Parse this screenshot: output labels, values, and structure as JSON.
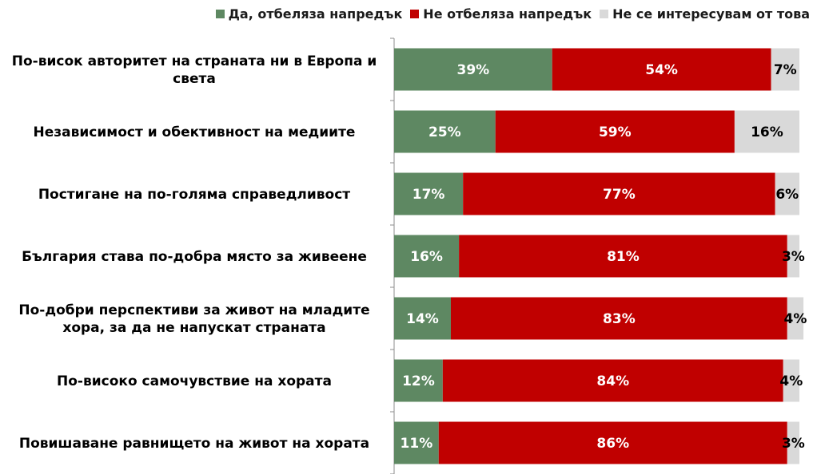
{
  "chart_data": {
    "type": "bar",
    "orientation": "horizontal",
    "stacked": true,
    "percent_stacked": true,
    "legend_position": "top-right",
    "grid": false,
    "categories": [
      "По-висок авторитет на страната ни в Европа и света",
      "Независимост и обективност на медиите",
      "Постигане на по-голяма справедливост",
      "България става по-добра място за живеене",
      "По-добри перспективи за живот на младите хора, за да не напускат страната",
      "По-високо самочувствие на хората",
      "Повишаване равнището на живот на хората"
    ],
    "series": [
      {
        "name": "Да, отбеляза напредък",
        "color": "#5e8862",
        "label_color": "#ffffff",
        "values": [
          39,
          25,
          17,
          16,
          14,
          12,
          11
        ]
      },
      {
        "name": "Не отбеляза напредък",
        "color": "#c00000",
        "label_color": "#ffffff",
        "values": [
          54,
          59,
          77,
          81,
          83,
          84,
          86
        ]
      },
      {
        "name": "Не се интересувам от това",
        "color": "#d9d9d9",
        "label_color": "#000000",
        "values": [
          7,
          16,
          6,
          3,
          4,
          4,
          3
        ]
      }
    ],
    "value_suffix": "%"
  }
}
